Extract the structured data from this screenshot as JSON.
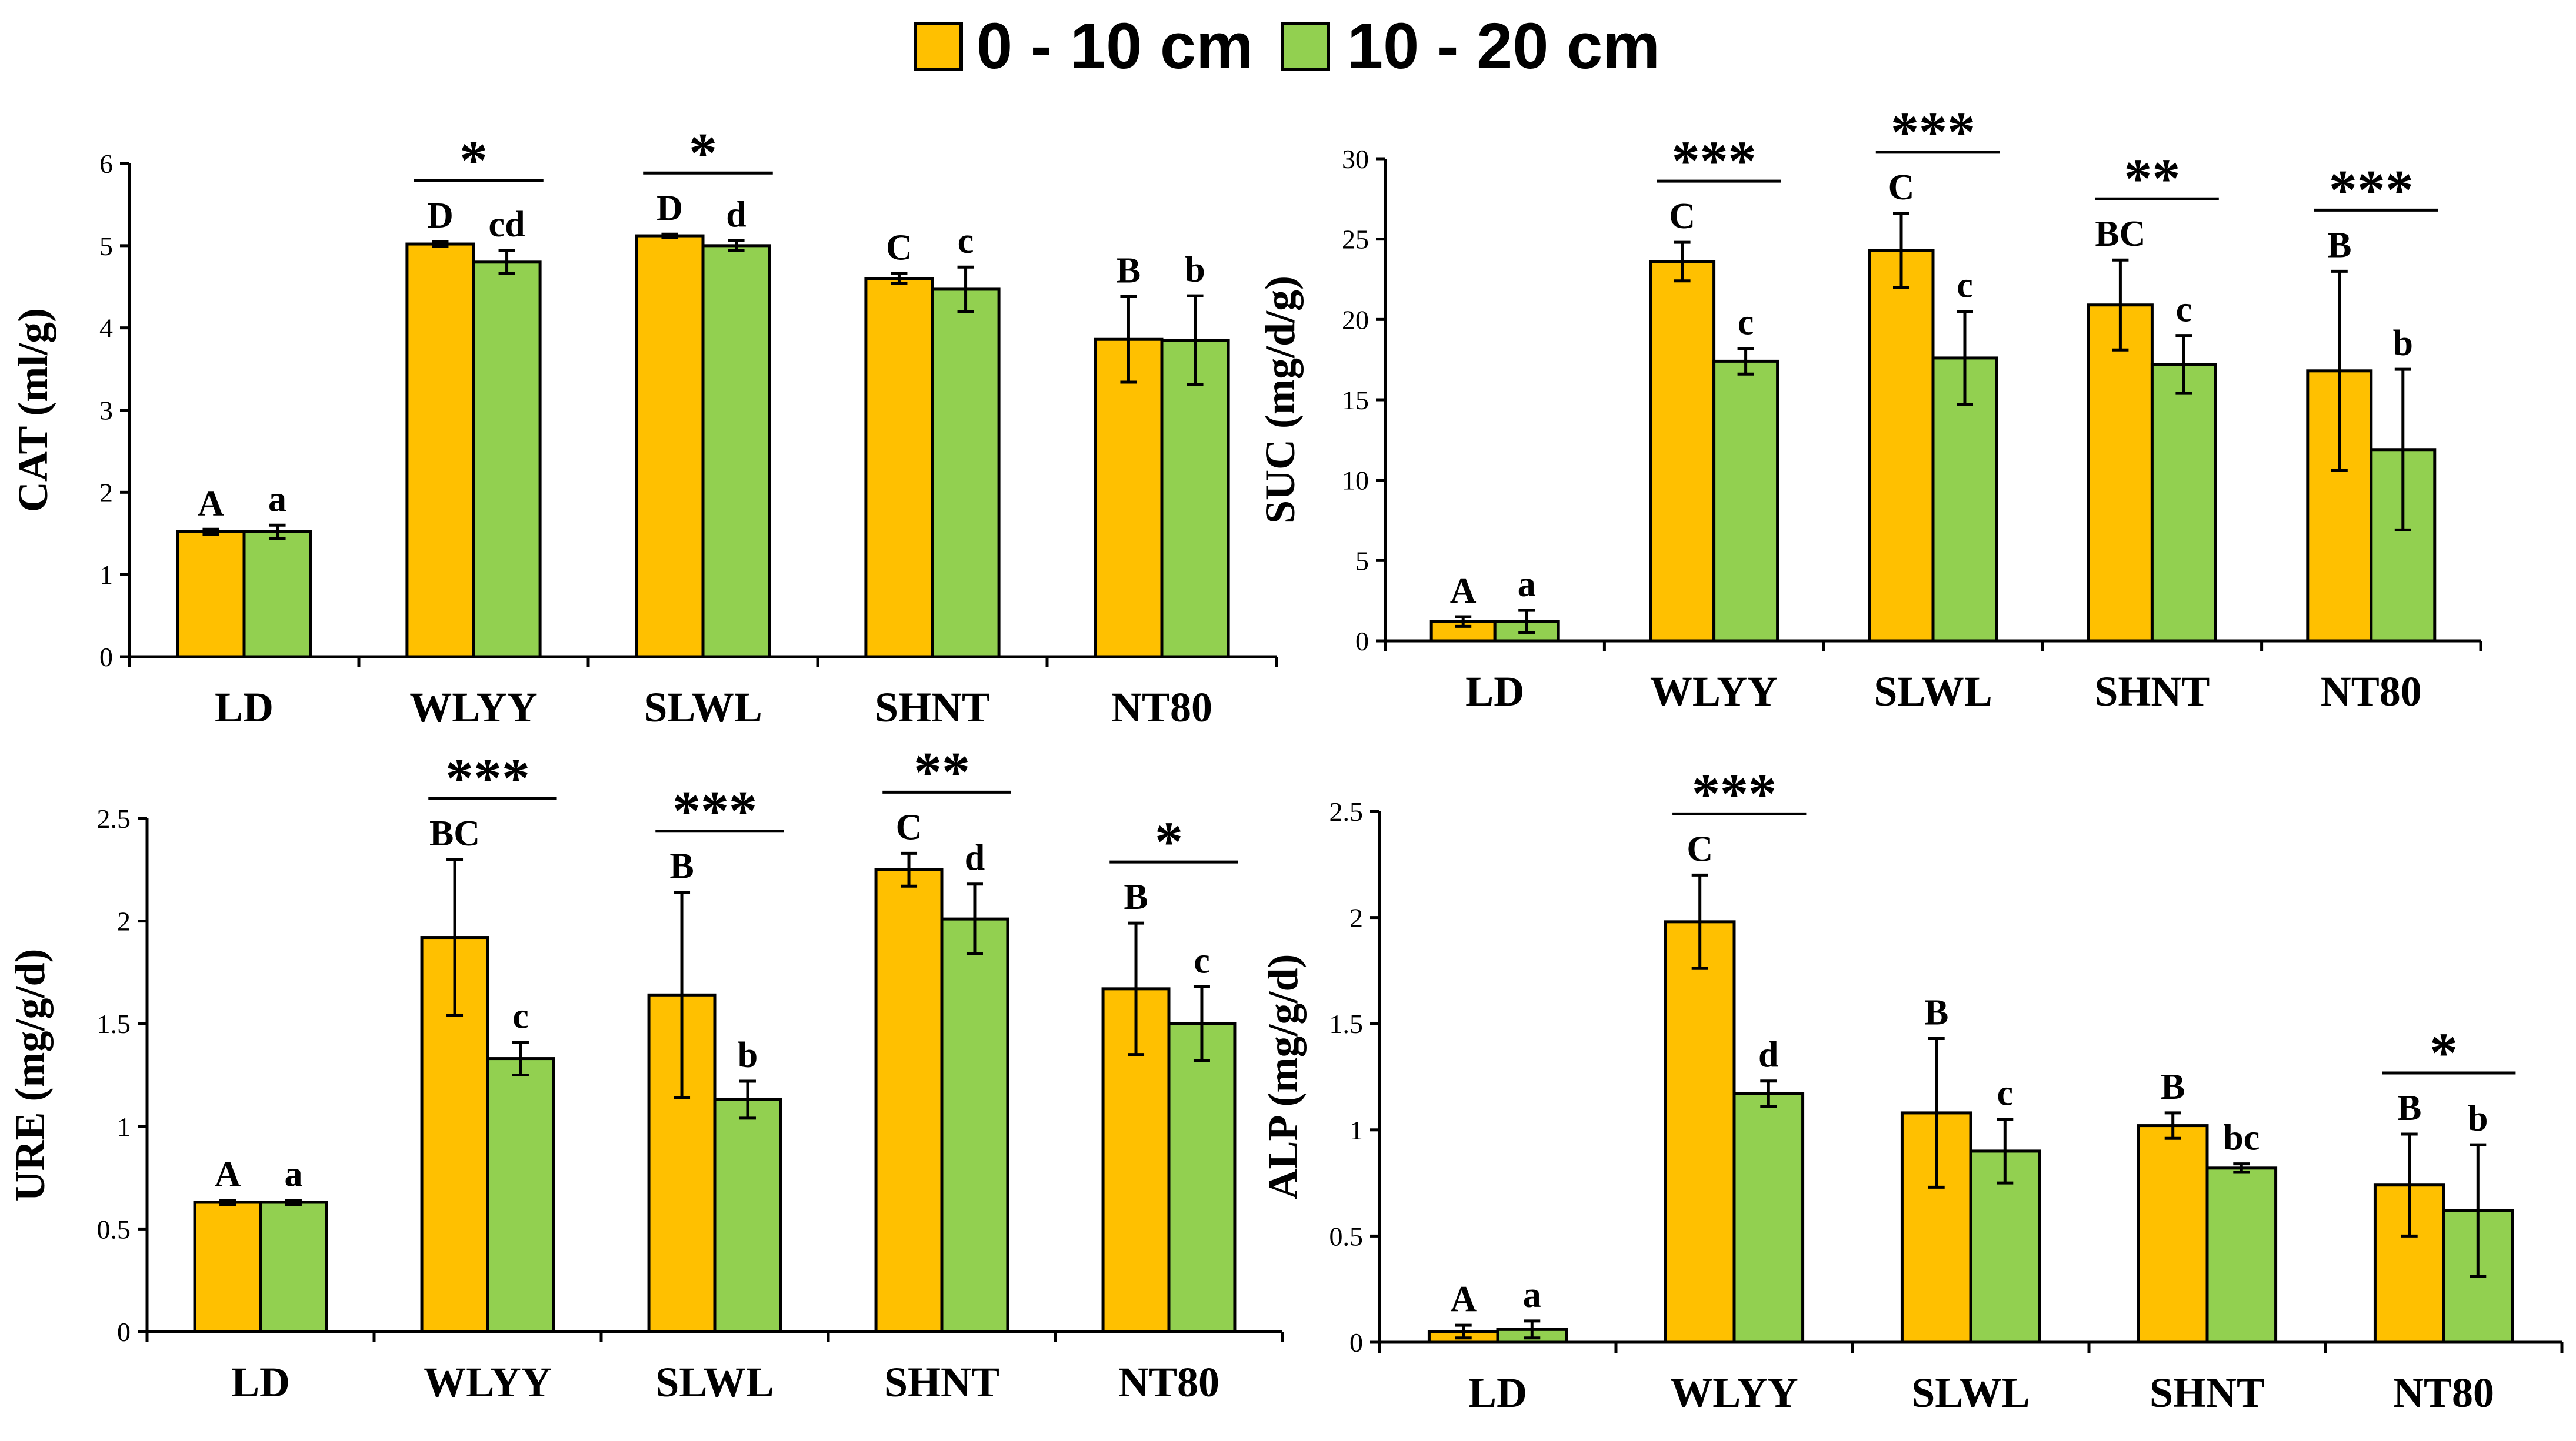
{
  "colors": {
    "depth1": "#FFC000",
    "depth2": "#92D050",
    "stroke": "#000000"
  },
  "legend": [
    {
      "label": "0 - 10 cm",
      "color": "#FFC000"
    },
    {
      "label": "10 - 20 cm",
      "color": "#92D050"
    }
  ],
  "chart_data": [
    {
      "type": "bar",
      "ylabel": "CAT (ml/g)",
      "ylim": [
        0,
        6
      ],
      "yticks": [
        "0",
        "1",
        "2",
        "3",
        "4",
        "5",
        "6"
      ],
      "categories": [
        "LD",
        "WLYY",
        "SLWL",
        "SHNT",
        "NT80"
      ],
      "series": [
        {
          "name": "0 - 10 cm",
          "values": [
            1.52,
            5.02,
            5.12,
            4.6,
            3.86
          ],
          "errors": [
            0.03,
            0.03,
            0.02,
            0.06,
            0.52
          ],
          "letters": [
            "A",
            "D",
            "D",
            "C",
            "B"
          ]
        },
        {
          "name": "10 - 20 cm",
          "values": [
            1.52,
            4.8,
            5.0,
            4.47,
            3.85
          ],
          "errors": [
            0.08,
            0.14,
            0.06,
            0.27,
            0.54
          ],
          "letters": [
            "a",
            "cd",
            "d",
            "c",
            "b"
          ]
        }
      ],
      "significance": [
        "",
        "*",
        "*",
        "",
        ""
      ]
    },
    {
      "type": "bar",
      "ylabel": "SUC (mg/d/g)",
      "ylim": [
        0,
        30
      ],
      "yticks": [
        "0",
        "5",
        "10",
        "15",
        "20",
        "25",
        "30"
      ],
      "categories": [
        "LD",
        "WLYY",
        "SLWL",
        "SHNT",
        "NT80"
      ],
      "series": [
        {
          "name": "0 - 10 cm",
          "values": [
            1.2,
            23.6,
            24.3,
            20.9,
            16.8
          ],
          "errors": [
            0.3,
            1.2,
            2.3,
            2.8,
            6.2
          ],
          "letters": [
            "A",
            "C",
            "C",
            "BC",
            "B"
          ]
        },
        {
          "name": "10 - 20 cm",
          "values": [
            1.2,
            17.4,
            17.6,
            17.2,
            11.9
          ],
          "errors": [
            0.7,
            0.8,
            2.9,
            1.8,
            5.0
          ],
          "letters": [
            "a",
            "c",
            "c",
            "c",
            "b"
          ]
        }
      ],
      "significance": [
        "",
        "***",
        "***",
        "**",
        "***"
      ]
    },
    {
      "type": "bar",
      "ylabel": "URE (mg/g/d)",
      "ylim": [
        0,
        2.5
      ],
      "yticks": [
        "0",
        "0.5",
        "1",
        "1.5",
        "2",
        "2.5"
      ],
      "categories": [
        "LD",
        "WLYY",
        "SLWL",
        "SHNT",
        "NT80"
      ],
      "series": [
        {
          "name": "0 - 10 cm",
          "values": [
            0.63,
            1.92,
            1.64,
            2.25,
            1.67
          ],
          "errors": [
            0.01,
            0.38,
            0.5,
            0.08,
            0.32
          ],
          "letters": [
            "A",
            "BC",
            "B",
            "C",
            "B"
          ]
        },
        {
          "name": "10 - 20 cm",
          "values": [
            0.63,
            1.33,
            1.13,
            2.01,
            1.5
          ],
          "errors": [
            0.01,
            0.08,
            0.09,
            0.17,
            0.18
          ],
          "letters": [
            "a",
            "c",
            "b",
            "d",
            "c"
          ]
        }
      ],
      "significance": [
        "",
        "***",
        "***",
        "**",
        "*"
      ]
    },
    {
      "type": "bar",
      "ylabel": "ALP (mg/g/d)",
      "ylim": [
        0,
        2.5
      ],
      "yticks": [
        "0",
        "0.5",
        "1",
        "1.5",
        "2",
        "2.5"
      ],
      "categories": [
        "LD",
        "WLYY",
        "SLWL",
        "SHNT",
        "NT80"
      ],
      "series": [
        {
          "name": "0 - 10 cm",
          "values": [
            0.05,
            1.98,
            1.08,
            1.02,
            0.74
          ],
          "errors": [
            0.03,
            0.22,
            0.35,
            0.06,
            0.24
          ],
          "letters": [
            "A",
            "C",
            "B",
            "B",
            "B"
          ]
        },
        {
          "name": "10 - 20 cm",
          "values": [
            0.06,
            1.17,
            0.9,
            0.82,
            0.62
          ],
          "errors": [
            0.04,
            0.06,
            0.15,
            0.02,
            0.31
          ],
          "letters": [
            "a",
            "d",
            "c",
            "bc",
            "b"
          ]
        }
      ],
      "significance": [
        "",
        "***",
        "",
        "",
        "*"
      ]
    }
  ]
}
